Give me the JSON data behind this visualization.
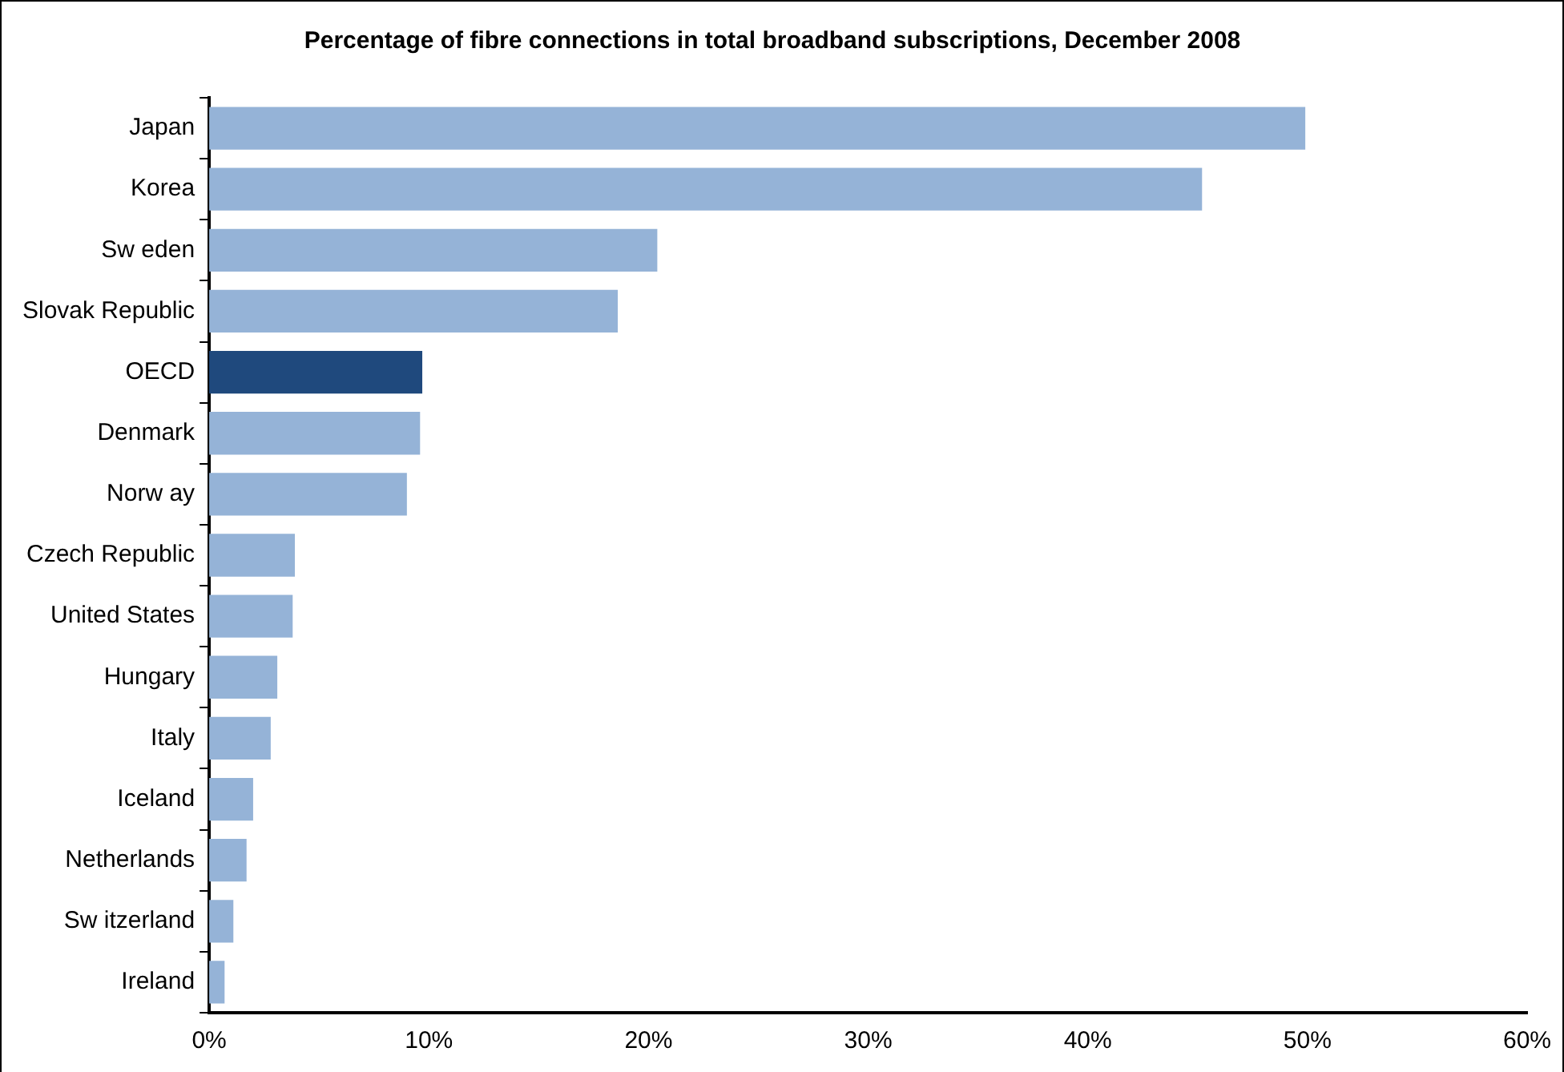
{
  "chart_data": {
    "type": "bar",
    "orientation": "horizontal",
    "title": "Percentage of fibre connections in total broadband subscriptions, December 2008",
    "categories": [
      "Japan",
      "Korea",
      "Sw eden",
      "Slovak Republic",
      "OECD",
      "Denmark",
      "Norw ay",
      "Czech Republic",
      "United States",
      "Hungary",
      "Italy",
      "Iceland",
      "Netherlands",
      "Sw itzerland",
      "Ireland"
    ],
    "values": [
      49.9,
      45.2,
      20.4,
      18.6,
      9.7,
      9.6,
      9.0,
      3.9,
      3.8,
      3.1,
      2.8,
      2.0,
      1.7,
      1.1,
      0.7
    ],
    "colors": [
      "#95b3d7",
      "#95b3d7",
      "#95b3d7",
      "#95b3d7",
      "#1f497d",
      "#95b3d7",
      "#95b3d7",
      "#95b3d7",
      "#95b3d7",
      "#95b3d7",
      "#95b3d7",
      "#95b3d7",
      "#95b3d7",
      "#95b3d7",
      "#95b3d7"
    ],
    "xlim": [
      0,
      60
    ],
    "xticks": [
      {
        "value": 0,
        "label": "0%"
      },
      {
        "value": 10,
        "label": "10%"
      },
      {
        "value": 20,
        "label": "20%"
      },
      {
        "value": 30,
        "label": "30%"
      },
      {
        "value": 40,
        "label": "40%"
      },
      {
        "value": 50,
        "label": "50%"
      },
      {
        "value": 60,
        "label": "60%"
      }
    ],
    "grid": false,
    "legend": false
  }
}
